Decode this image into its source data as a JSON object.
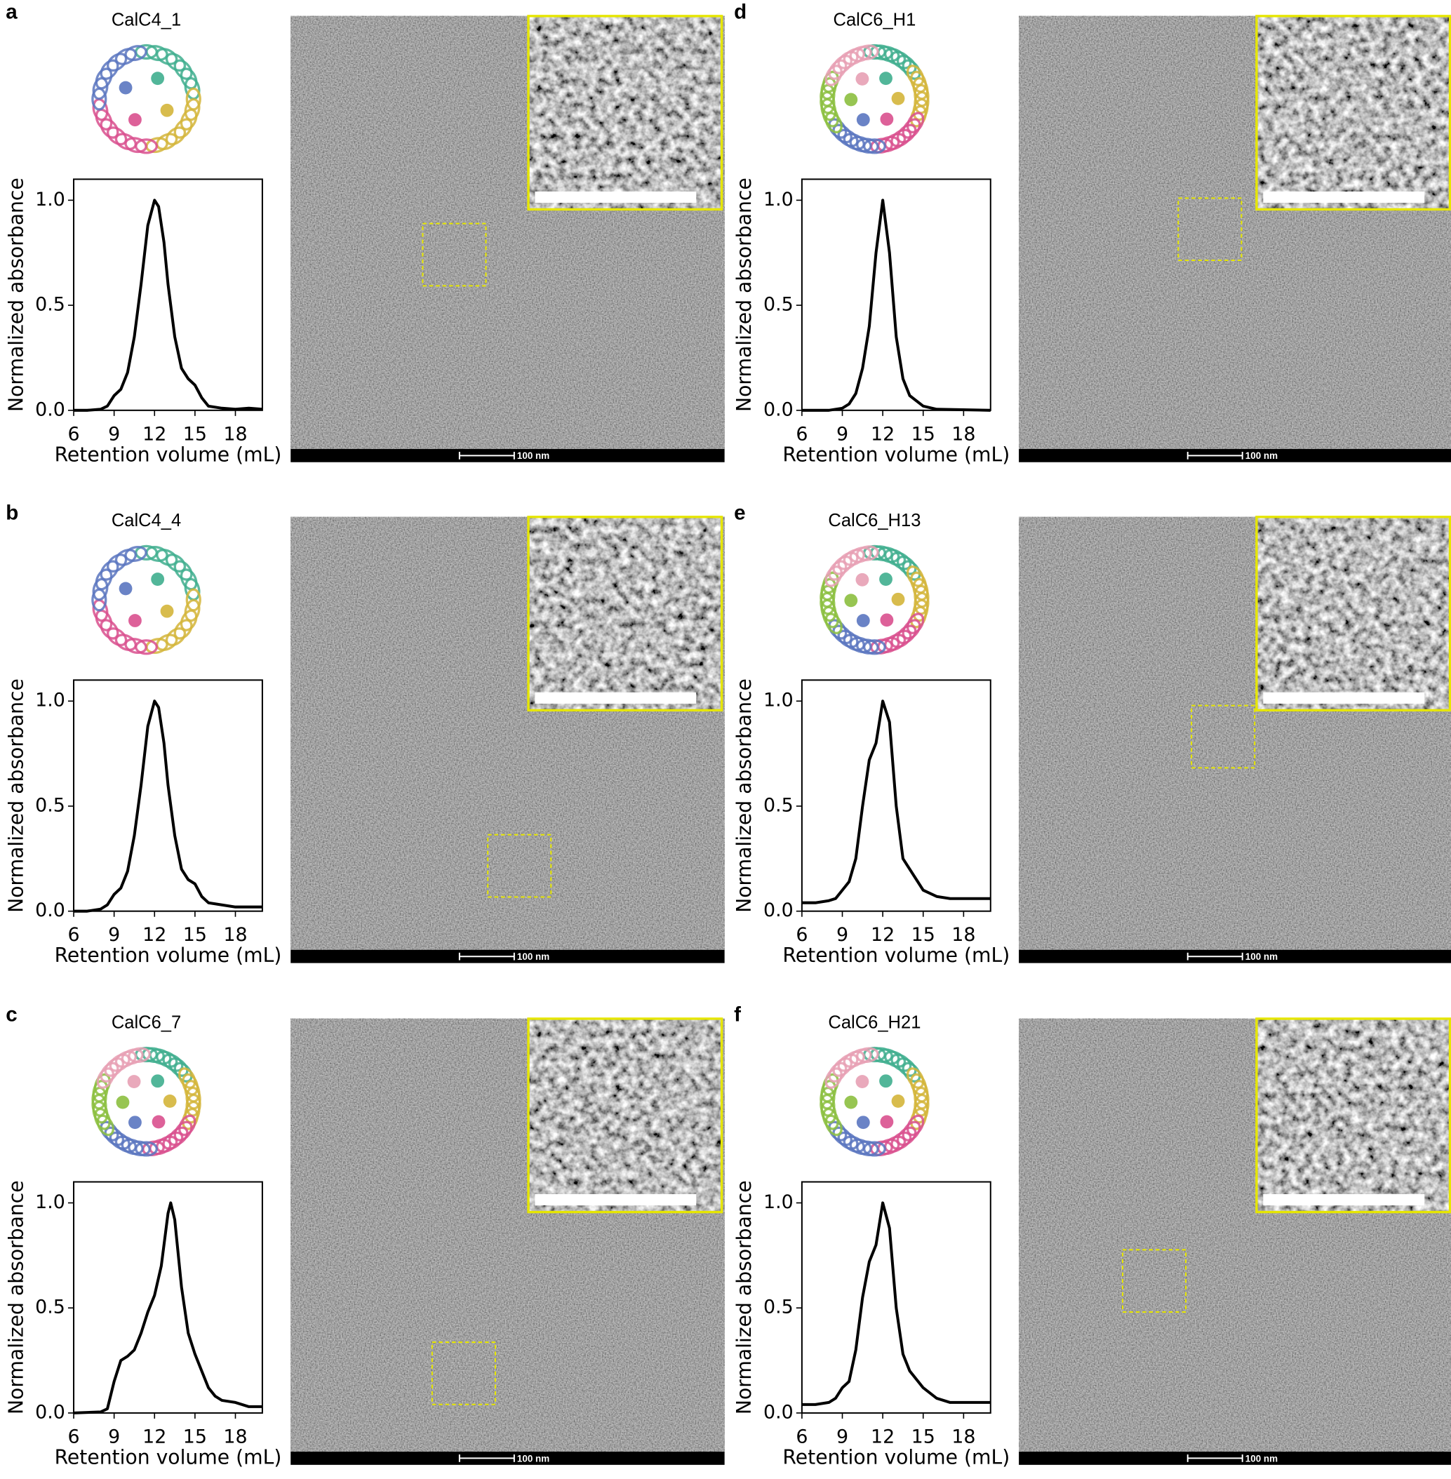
{
  "chart_data": [
    {
      "type": "line",
      "panel": "a",
      "title": "CalC4_1",
      "xlabel": "Retention volume (mL)",
      "ylabel": "Normalized absorbance",
      "scale_bar_label": "100 nm",
      "color": "#000000",
      "x": [
        6,
        7,
        8,
        8.5,
        9,
        9.5,
        10,
        10.5,
        11,
        11.5,
        12,
        12.3,
        12.7,
        13,
        13.5,
        14,
        14.5,
        15,
        15.5,
        16,
        17,
        18,
        19,
        20
      ],
      "values": [
        0,
        0,
        0.005,
        0.02,
        0.07,
        0.1,
        0.18,
        0.35,
        0.6,
        0.88,
        1.0,
        0.97,
        0.8,
        0.6,
        0.35,
        0.2,
        0.15,
        0.12,
        0.06,
        0.02,
        0.01,
        0.005,
        0.01,
        0.005
      ],
      "xlim": [
        6,
        20
      ],
      "ylim": [
        0,
        1.1
      ],
      "xticks": [
        6,
        9,
        12,
        15,
        18
      ],
      "yticks": [
        {
          "value": 0,
          "label": "0.0"
        },
        0.5,
        {
          "value": 1,
          "label": "1.0"
        }
      ]
    },
    {
      "type": "line",
      "panel": "b",
      "title": "CalC4_4",
      "xlabel": "Retention volume (mL)",
      "ylabel": "Normalized absorbance",
      "scale_bar_label": "100 nm",
      "color": "#000000",
      "x": [
        6,
        7,
        8,
        8.5,
        9,
        9.5,
        10,
        10.5,
        11,
        11.5,
        12,
        12.3,
        12.7,
        13,
        13.5,
        14,
        14.5,
        15,
        15.5,
        16,
        17,
        18,
        19,
        20
      ],
      "values": [
        0,
        0,
        0.01,
        0.03,
        0.08,
        0.11,
        0.19,
        0.36,
        0.6,
        0.88,
        1.0,
        0.97,
        0.8,
        0.6,
        0.36,
        0.2,
        0.15,
        0.13,
        0.07,
        0.04,
        0.03,
        0.02,
        0.02,
        0.02
      ],
      "xlim": [
        6,
        20
      ],
      "ylim": [
        0,
        1.1
      ],
      "xticks": [
        6,
        9,
        12,
        15,
        18
      ],
      "yticks": [
        {
          "value": 0,
          "label": "0.0"
        },
        0.5,
        {
          "value": 1,
          "label": "1.0"
        }
      ]
    },
    {
      "type": "line",
      "panel": "c",
      "title": "CalC6_7",
      "xlabel": "Retention volume (mL)",
      "ylabel": "Normalized absorbance",
      "scale_bar_label": "100 nm",
      "color": "#000000",
      "x": [
        6,
        8,
        8.5,
        9,
        9.5,
        10,
        10.5,
        11,
        11.5,
        12,
        12.5,
        13,
        13.2,
        13.5,
        14,
        14.5,
        15,
        15.5,
        16,
        16.5,
        17,
        18,
        19,
        20
      ],
      "values": [
        0,
        0.005,
        0.02,
        0.15,
        0.25,
        0.27,
        0.3,
        0.38,
        0.48,
        0.56,
        0.7,
        0.95,
        1.0,
        0.92,
        0.6,
        0.38,
        0.28,
        0.2,
        0.12,
        0.08,
        0.06,
        0.05,
        0.03,
        0.03
      ],
      "xlim": [
        6,
        20
      ],
      "ylim": [
        0,
        1.1
      ],
      "xticks": [
        6,
        9,
        12,
        15,
        18
      ],
      "yticks": [
        {
          "value": 0,
          "label": "0.0"
        },
        0.5,
        {
          "value": 1,
          "label": "1.0"
        }
      ]
    },
    {
      "type": "line",
      "panel": "d",
      "title": "CalC6_H1",
      "xlabel": "Retention volume (mL)",
      "ylabel": "Normalized absorbance",
      "scale_bar_label": "100 nm",
      "color": "#000000",
      "x": [
        6,
        8,
        9,
        9.5,
        10,
        10.5,
        11,
        11.5,
        12,
        12.5,
        13,
        13.5,
        14,
        15,
        16,
        20
      ],
      "values": [
        0,
        0,
        0.01,
        0.03,
        0.08,
        0.2,
        0.4,
        0.75,
        1.0,
        0.75,
        0.35,
        0.15,
        0.07,
        0.02,
        0.005,
        0
      ],
      "xlim": [
        6,
        20
      ],
      "ylim": [
        0,
        1.1
      ],
      "xticks": [
        6,
        9,
        12,
        15,
        18
      ],
      "yticks": [
        {
          "value": 0,
          "label": "0.0"
        },
        0.5,
        {
          "value": 1,
          "label": "1.0"
        }
      ]
    },
    {
      "type": "line",
      "panel": "e",
      "title": "CalC6_H13",
      "xlabel": "Retention volume (mL)",
      "ylabel": "Normalized absorbance",
      "scale_bar_label": "100 nm",
      "color": "#000000",
      "x": [
        6,
        7,
        8,
        8.5,
        9,
        9.5,
        10,
        10.5,
        11,
        11.5,
        12,
        12.5,
        13,
        13.5,
        14,
        14.5,
        15,
        16,
        17,
        18,
        20
      ],
      "values": [
        0.04,
        0.04,
        0.05,
        0.06,
        0.1,
        0.14,
        0.25,
        0.5,
        0.72,
        0.8,
        1.0,
        0.9,
        0.5,
        0.25,
        0.2,
        0.15,
        0.1,
        0.07,
        0.06,
        0.06,
        0.06
      ],
      "xlim": [
        6,
        20
      ],
      "ylim": [
        0,
        1.1
      ],
      "xticks": [
        6,
        9,
        12,
        15,
        18
      ],
      "yticks": [
        {
          "value": 0,
          "label": "0.0"
        },
        0.5,
        {
          "value": 1,
          "label": "1.0"
        }
      ]
    },
    {
      "type": "line",
      "panel": "f",
      "title": "CalC6_H21",
      "xlabel": "Retention volume (mL)",
      "ylabel": "Normalized absorbance",
      "scale_bar_label": "100 nm",
      "color": "#000000",
      "x": [
        6,
        7,
        8,
        8.5,
        9,
        9.5,
        10,
        10.5,
        11,
        11.5,
        12,
        12.5,
        13,
        13.5,
        14,
        14.5,
        15,
        16,
        17,
        18,
        20
      ],
      "values": [
        0.04,
        0.04,
        0.05,
        0.07,
        0.12,
        0.15,
        0.3,
        0.55,
        0.72,
        0.8,
        1.0,
        0.88,
        0.5,
        0.28,
        0.2,
        0.16,
        0.12,
        0.07,
        0.05,
        0.05,
        0.05
      ],
      "xlim": [
        6,
        20
      ],
      "ylim": [
        0,
        1.1
      ],
      "xticks": [
        6,
        9,
        12,
        15,
        18
      ],
      "yticks": [
        {
          "value": 0,
          "label": "0.0"
        },
        0.5,
        {
          "value": 1,
          "label": "1.0"
        }
      ]
    }
  ]
}
